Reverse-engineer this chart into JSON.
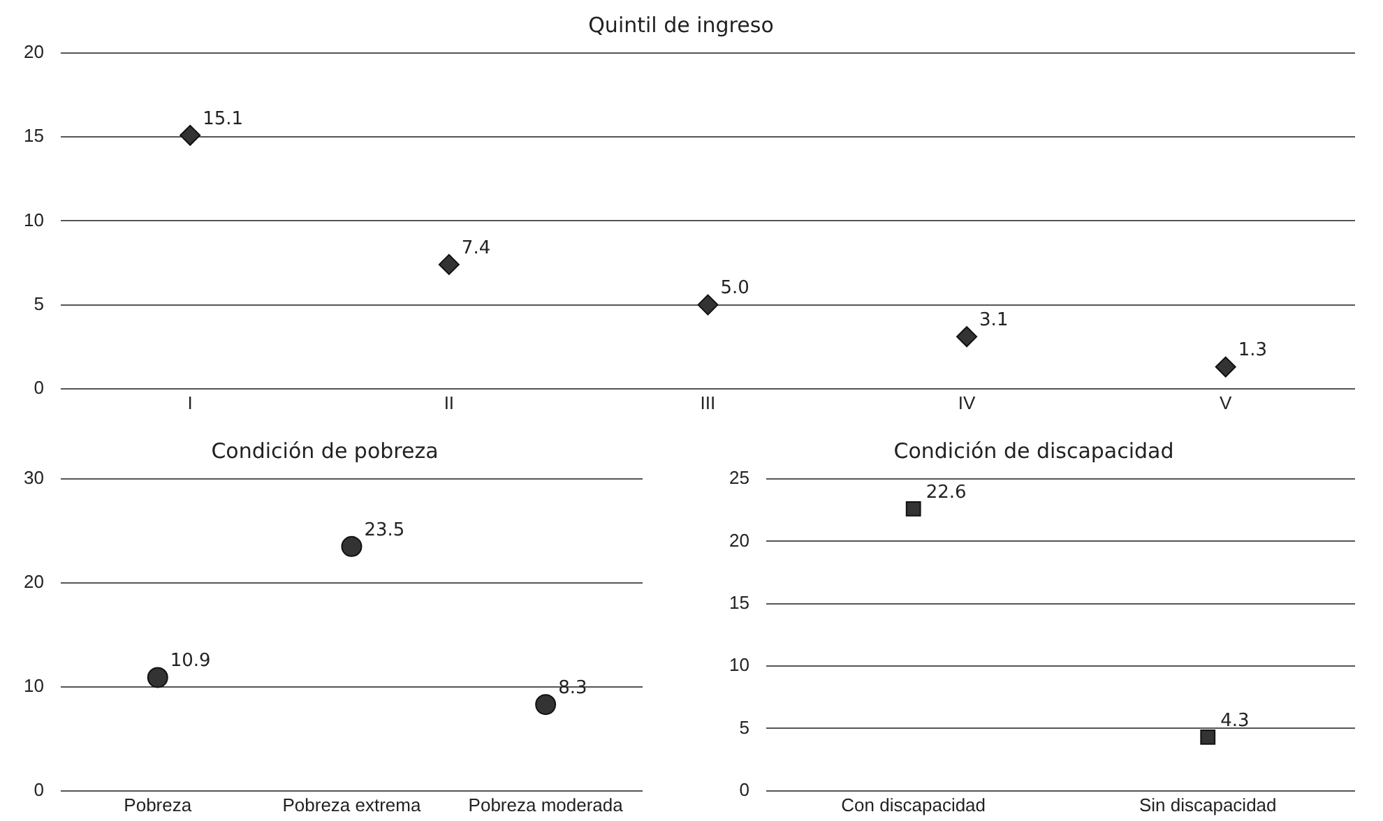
{
  "chart_data": [
    {
      "type": "scatter",
      "title": "Quintil de ingreso",
      "categories": [
        "I",
        "II",
        "III",
        "IV",
        "V"
      ],
      "values": [
        15.1,
        7.4,
        5.0,
        3.1,
        1.3
      ],
      "value_labels": [
        "15.1",
        "7.4",
        "5.0",
        "3.1",
        "1.3"
      ],
      "color": "#333333",
      "marker": "diamond",
      "ylim": [
        0,
        20
      ],
      "yticks": [
        0,
        5,
        10,
        15,
        20
      ],
      "grid": "y"
    },
    {
      "type": "scatter",
      "title": "Condición de pobreza",
      "categories": [
        "Pobreza",
        "Pobreza extrema",
        "Pobreza moderada"
      ],
      "values": [
        10.9,
        23.5,
        8.3
      ],
      "value_labels": [
        "10.9",
        "23.5",
        "8.3"
      ],
      "color": "#333333",
      "marker": "circle",
      "ylim": [
        0,
        30
      ],
      "yticks": [
        0,
        10,
        20,
        30
      ],
      "grid": "y"
    },
    {
      "type": "scatter",
      "title": "Condición de discapacidad",
      "categories": [
        "Con discapacidad",
        "Sin discapacidad"
      ],
      "values": [
        22.6,
        4.3
      ],
      "value_labels": [
        "22.6",
        "4.3"
      ],
      "color": "#333333",
      "marker": "square",
      "ylim": [
        0,
        25
      ],
      "yticks": [
        0,
        5,
        10,
        15,
        20,
        25
      ],
      "grid": "y"
    }
  ]
}
